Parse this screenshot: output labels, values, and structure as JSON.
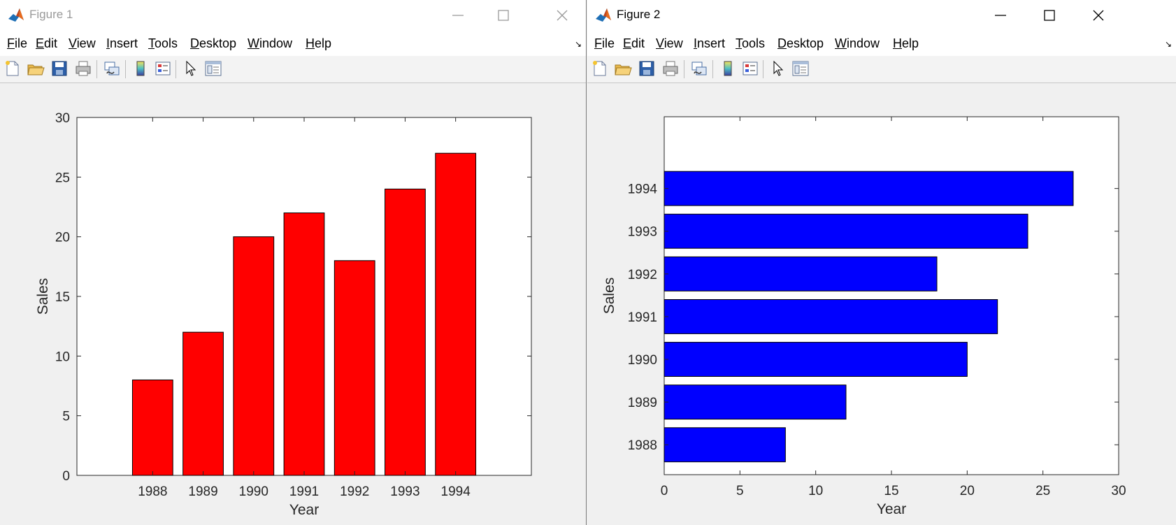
{
  "windows": [
    {
      "title": "Figure 1",
      "active": false,
      "menu": [
        {
          "pre": "",
          "u": "F",
          "post": "ile"
        },
        {
          "pre": "",
          "u": "E",
          "post": "dit"
        },
        {
          "pre": "",
          "u": "V",
          "post": "iew"
        },
        {
          "pre": "",
          "u": "I",
          "post": "nsert"
        },
        {
          "pre": "",
          "u": "T",
          "post": "ools"
        },
        {
          "pre": "",
          "u": "D",
          "post": "esktop"
        },
        {
          "pre": "",
          "u": "W",
          "post": "indow"
        },
        {
          "pre": "",
          "u": "H",
          "post": "elp"
        }
      ],
      "toolbar": [
        "new-figure-icon",
        "open-file-icon",
        "save-icon",
        "print-icon",
        "link-plot-icon",
        "colorbar-icon",
        "legend-icon",
        "pointer-icon",
        "property-inspector-icon"
      ]
    },
    {
      "title": "Figure 2",
      "active": true,
      "menu": [
        {
          "pre": "",
          "u": "F",
          "post": "ile"
        },
        {
          "pre": "",
          "u": "E",
          "post": "dit"
        },
        {
          "pre": "",
          "u": "V",
          "post": "iew"
        },
        {
          "pre": "",
          "u": "I",
          "post": "nsert"
        },
        {
          "pre": "",
          "u": "T",
          "post": "ools"
        },
        {
          "pre": "",
          "u": "D",
          "post": "esktop"
        },
        {
          "pre": "",
          "u": "W",
          "post": "indow"
        },
        {
          "pre": "",
          "u": "H",
          "post": "elp"
        }
      ],
      "toolbar": [
        "new-figure-icon",
        "open-file-icon",
        "save-icon",
        "print-icon",
        "link-plot-icon",
        "colorbar-icon",
        "legend-icon",
        "pointer-icon",
        "property-inspector-icon"
      ]
    }
  ],
  "chart_data": [
    {
      "type": "bar",
      "orientation": "vertical",
      "categories": [
        "1988",
        "1989",
        "1990",
        "1991",
        "1992",
        "1993",
        "1994"
      ],
      "values": [
        8,
        12,
        20,
        22,
        18,
        24,
        27
      ],
      "color": "#ff0000",
      "xlabel": "Year",
      "ylabel": "Sales",
      "ylim": [
        0,
        30
      ],
      "yticks": [
        0,
        5,
        10,
        15,
        20,
        25,
        30
      ],
      "grid": false
    },
    {
      "type": "bar",
      "orientation": "horizontal",
      "categories": [
        "1988",
        "1989",
        "1990",
        "1991",
        "1992",
        "1993",
        "1994"
      ],
      "values": [
        8,
        12,
        20,
        22,
        18,
        24,
        27
      ],
      "color": "#0000ff",
      "xlabel": "Year",
      "ylabel": "Sales",
      "xlim": [
        0,
        30
      ],
      "xticks": [
        0,
        5,
        10,
        15,
        20,
        25,
        30
      ],
      "grid": false
    }
  ]
}
